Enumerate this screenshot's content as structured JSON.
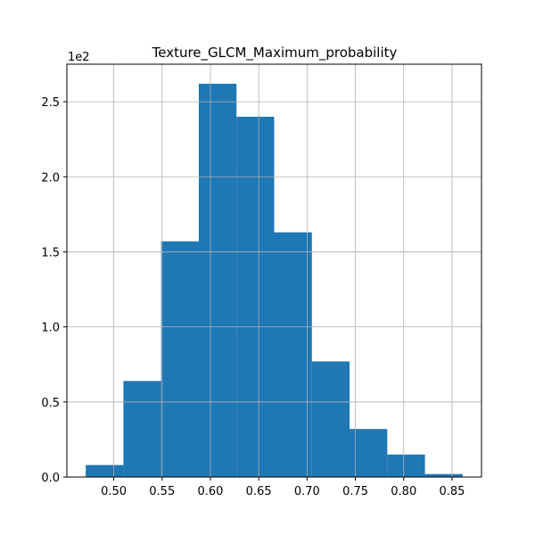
{
  "chart_data": {
    "type": "bar",
    "title": "Texture_GLCM_Maximum_probability",
    "xlabel": "",
    "ylabel": "",
    "y_offset_label": "1e2",
    "bar_color": "#1f77b4",
    "grid": true,
    "bins": [
      {
        "start": 0.471,
        "end": 0.51,
        "value": 8
      },
      {
        "start": 0.51,
        "end": 0.549,
        "value": 64
      },
      {
        "start": 0.549,
        "end": 0.588,
        "value": 157
      },
      {
        "start": 0.588,
        "end": 0.627,
        "value": 262
      },
      {
        "start": 0.627,
        "end": 0.666,
        "value": 240
      },
      {
        "start": 0.666,
        "end": 0.705,
        "value": 163
      },
      {
        "start": 0.705,
        "end": 0.744,
        "value": 77
      },
      {
        "start": 0.744,
        "end": 0.783,
        "value": 32
      },
      {
        "start": 0.783,
        "end": 0.822,
        "value": 15
      },
      {
        "start": 0.822,
        "end": 0.861,
        "value": 2
      }
    ],
    "xlim": [
      0.4515,
      0.8805
    ],
    "ylim": [
      0,
      275
    ],
    "x_ticks": [
      {
        "value": 0.5,
        "label": "0.50"
      },
      {
        "value": 0.55,
        "label": "0.55"
      },
      {
        "value": 0.6,
        "label": "0.60"
      },
      {
        "value": 0.65,
        "label": "0.65"
      },
      {
        "value": 0.7,
        "label": "0.70"
      },
      {
        "value": 0.75,
        "label": "0.75"
      },
      {
        "value": 0.8,
        "label": "0.80"
      },
      {
        "value": 0.85,
        "label": "0.85"
      }
    ],
    "y_ticks": [
      {
        "value": 0,
        "label": "0.0"
      },
      {
        "value": 50,
        "label": "0.5"
      },
      {
        "value": 100,
        "label": "1.0"
      },
      {
        "value": 150,
        "label": "1.5"
      },
      {
        "value": 200,
        "label": "2.0"
      },
      {
        "value": 250,
        "label": "2.5"
      }
    ]
  }
}
